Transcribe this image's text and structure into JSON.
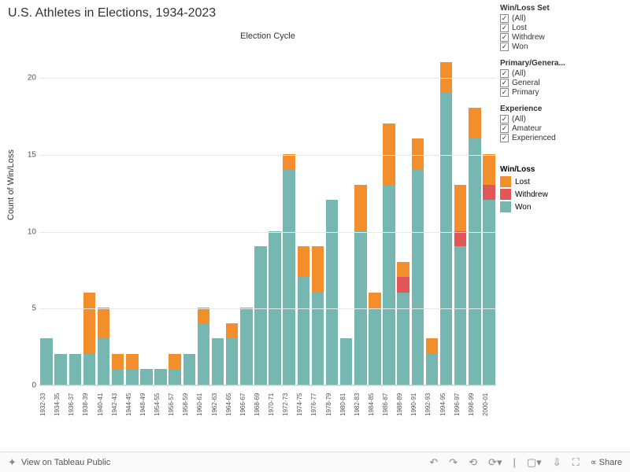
{
  "title": "U.S. Athletes in Elections, 1934-2023",
  "chart_top_title": "Election Cycle",
  "y_label": "Count of Win/Loss",
  "chart": {
    "type": "stacked-bar",
    "ylim": [
      0,
      22
    ],
    "yticks": [
      0,
      5,
      10,
      15,
      20
    ],
    "colors": {
      "Lost": "#f28e2b",
      "Withdrew": "#e15759",
      "Won": "#76b7b2"
    },
    "categories": [
      "1932-33",
      "1934-35",
      "1936-37",
      "1938-39",
      "1940-41",
      "1942-43",
      "1944-45",
      "1948-49",
      "1954-55",
      "1956-57",
      "1958-59",
      "1960-61",
      "1962-63",
      "1964-65",
      "1966-67",
      "1968-69",
      "1970-71",
      "1972-73",
      "1974-75",
      "1976-77",
      "1978-79",
      "1980-81",
      "1982-83",
      "1984-85",
      "1986-87",
      "1988-89",
      "1990-91",
      "1992-93",
      "1994-95",
      "1996-97",
      "1998-99",
      "2000-01"
    ],
    "series": [
      {
        "c": "1932-33",
        "Won": 3,
        "Withdrew": 0,
        "Lost": 0
      },
      {
        "c": "1934-35",
        "Won": 2,
        "Withdrew": 0,
        "Lost": 0
      },
      {
        "c": "1936-37",
        "Won": 2,
        "Withdrew": 0,
        "Lost": 0
      },
      {
        "c": "1938-39",
        "Won": 2,
        "Withdrew": 0,
        "Lost": 4
      },
      {
        "c": "1940-41",
        "Won": 3,
        "Withdrew": 0,
        "Lost": 2
      },
      {
        "c": "1942-43",
        "Won": 1,
        "Withdrew": 0,
        "Lost": 1
      },
      {
        "c": "1944-45",
        "Won": 1,
        "Withdrew": 0,
        "Lost": 1
      },
      {
        "c": "1948-49",
        "Won": 1,
        "Withdrew": 0,
        "Lost": 0
      },
      {
        "c": "1954-55",
        "Won": 1,
        "Withdrew": 0,
        "Lost": 0
      },
      {
        "c": "1956-57",
        "Won": 1,
        "Withdrew": 0,
        "Lost": 1
      },
      {
        "c": "1958-59",
        "Won": 2,
        "Withdrew": 0,
        "Lost": 0
      },
      {
        "c": "1960-61",
        "Won": 4,
        "Withdrew": 0,
        "Lost": 1
      },
      {
        "c": "1962-63",
        "Won": 3,
        "Withdrew": 0,
        "Lost": 0
      },
      {
        "c": "1964-65",
        "Won": 3,
        "Withdrew": 0,
        "Lost": 1
      },
      {
        "c": "1966-67",
        "Won": 5,
        "Withdrew": 0,
        "Lost": 0
      },
      {
        "c": "1968-69",
        "Won": 9,
        "Withdrew": 0,
        "Lost": 0
      },
      {
        "c": "1970-71",
        "Won": 10,
        "Withdrew": 0,
        "Lost": 0
      },
      {
        "c": "1972-73",
        "Won": 14,
        "Withdrew": 0,
        "Lost": 1
      },
      {
        "c": "1974-75",
        "Won": 7,
        "Withdrew": 0,
        "Lost": 2
      },
      {
        "c": "1976-77",
        "Won": 6,
        "Withdrew": 0,
        "Lost": 3
      },
      {
        "c": "1978-79",
        "Won": 12,
        "Withdrew": 0,
        "Lost": 0
      },
      {
        "c": "1980-81",
        "Won": 3,
        "Withdrew": 0,
        "Lost": 0
      },
      {
        "c": "1982-83",
        "Won": 10,
        "Withdrew": 0,
        "Lost": 3
      },
      {
        "c": "1984-85",
        "Won": 5,
        "Withdrew": 0,
        "Lost": 1
      },
      {
        "c": "1986-87",
        "Won": 13,
        "Withdrew": 0,
        "Lost": 4
      },
      {
        "c": "1988-89",
        "Won": 6,
        "Withdrew": 1,
        "Lost": 1
      },
      {
        "c": "1990-91",
        "Won": 14,
        "Withdrew": 0,
        "Lost": 2
      },
      {
        "c": "1992-93",
        "Won": 2,
        "Withdrew": 0,
        "Lost": 1
      },
      {
        "c": "1994-95",
        "Won": 19,
        "Withdrew": 0,
        "Lost": 2
      },
      {
        "c": "1996-97",
        "Won": 9,
        "Withdrew": 1,
        "Lost": 3
      },
      {
        "c": "1998-99",
        "Won": 16,
        "Withdrew": 0,
        "Lost": 2
      },
      {
        "c": "2000-01",
        "Won": 12,
        "Withdrew": 1,
        "Lost": 2
      }
    ]
  },
  "filters": [
    {
      "title": "Win/Loss Set",
      "items": [
        "(All)",
        "Lost",
        "Withdrew",
        "Won"
      ]
    },
    {
      "title": "Primary/Genera...",
      "items": [
        "(All)",
        "General",
        "Primary"
      ]
    },
    {
      "title": "Experience",
      "items": [
        "(All)",
        "Amateur",
        "Experienced"
      ]
    }
  ],
  "legend": {
    "title": "Win/Loss",
    "items": [
      {
        "label": "Lost",
        "color": "#f28e2b"
      },
      {
        "label": "Withdrew",
        "color": "#e15759"
      },
      {
        "label": "Won",
        "color": "#76b7b2"
      }
    ]
  },
  "toolbar": {
    "view_label": "View on Tableau Public",
    "share_label": "Share"
  }
}
